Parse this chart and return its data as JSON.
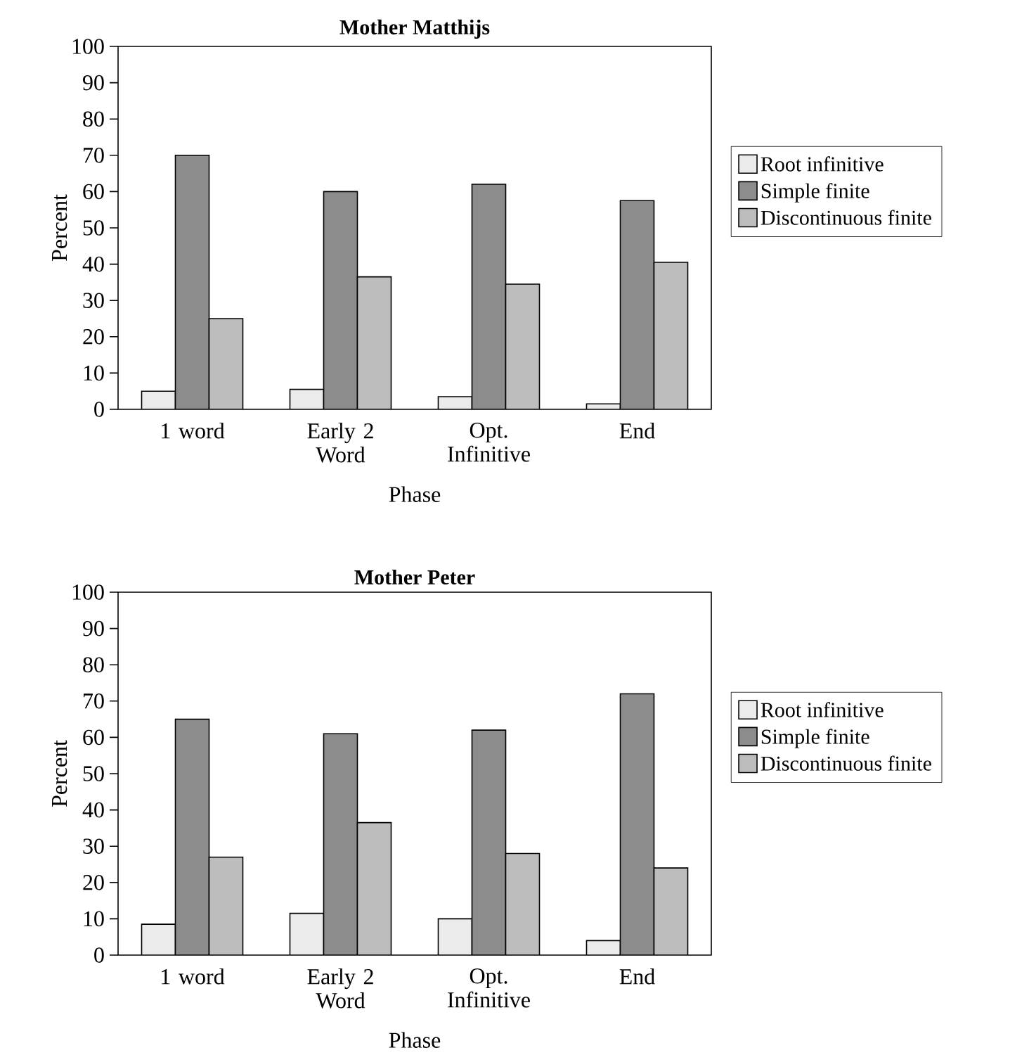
{
  "chart_data": [
    {
      "type": "bar",
      "title": "Mother Matthijs",
      "xlabel": "Phase",
      "ylabel": "Percent",
      "categories": [
        "1 word",
        "Early 2 Word",
        "Opt. Infinitive",
        "End"
      ],
      "series": [
        {
          "name": "Root infinitive",
          "color": "#ebebeb",
          "values": [
            5,
            5.5,
            3.5,
            1.5
          ]
        },
        {
          "name": "Simple finite",
          "color": "#8c8c8c",
          "values": [
            70,
            60,
            62,
            57.5
          ]
        },
        {
          "name": "Discontinuous finite",
          "color": "#bdbdbd",
          "values": [
            25,
            36.5,
            34.5,
            40.5
          ]
        }
      ],
      "ylim": [
        0,
        100
      ],
      "yticks": [
        0,
        10,
        20,
        30,
        40,
        50,
        60,
        70,
        80,
        90,
        100
      ],
      "grid": false,
      "legend": "right"
    },
    {
      "type": "bar",
      "title": "Mother Peter",
      "xlabel": "Phase",
      "ylabel": "Percent",
      "categories": [
        "1 word",
        "Early 2 Word",
        "Opt. Infinitive",
        "End"
      ],
      "series": [
        {
          "name": "Root infinitive",
          "color": "#ebebeb",
          "values": [
            8.5,
            11.5,
            10,
            4
          ]
        },
        {
          "name": "Simple finite",
          "color": "#8c8c8c",
          "values": [
            65,
            61,
            62,
            72
          ]
        },
        {
          "name": "Discontinuous finite",
          "color": "#bdbdbd",
          "values": [
            27,
            36.5,
            28,
            24
          ]
        }
      ],
      "ylim": [
        0,
        100
      ],
      "yticks": [
        0,
        10,
        20,
        30,
        40,
        50,
        60,
        70,
        80,
        90,
        100
      ],
      "grid": false,
      "legend": "right"
    }
  ]
}
